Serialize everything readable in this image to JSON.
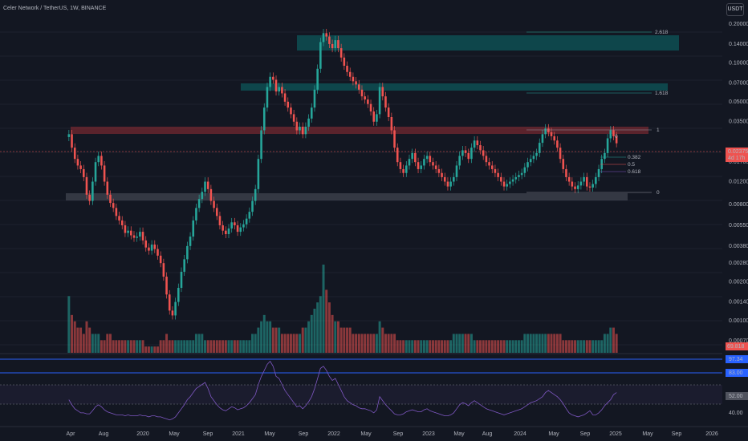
{
  "title": "Celer Network / TetherUS, 1W, BINANCE",
  "currency_button": "USDT",
  "colors": {
    "bg": "#131722",
    "up": "#26a69a",
    "down": "#ef5350",
    "rsi": "#7e57c2",
    "blue": "#2962ff"
  },
  "price_axis_labels": [
    "0.20000",
    "0.14000",
    "0.10000",
    "0.07000",
    "0.05000",
    "0.03500",
    "0.02375",
    "0.01700",
    "0.01200",
    "0.00800",
    "0.00550",
    "0.00380",
    "0.00280",
    "0.00200",
    "0.00140",
    "0.00100",
    "0.00070"
  ],
  "current_price_label": "0.02375",
  "current_price_sub": "4d 17h",
  "volume_label": "69.818",
  "rsi_labels": {
    "upper": "97.34",
    "band": "83.00",
    "value": "52.00",
    "lower": "40.00"
  },
  "time_labels": [
    "Apr",
    "Aug",
    "2020",
    "May",
    "Sep",
    "2021",
    "May",
    "Sep",
    "2022",
    "May",
    "Sep",
    "2023",
    "May",
    "Aug",
    "2024",
    "May",
    "Sep",
    "2025",
    "May",
    "Sep",
    "2026"
  ],
  "fib_labels": {
    "ext_2618": "2.618",
    "ext_1618": "1.618",
    "one": "1",
    "zero": "0",
    "r0382": "0.382",
    "r05": "0.5",
    "r0618": "0.618",
    "top0": "0"
  },
  "chart_data": {
    "type": "candlestick",
    "title": "Celer Network / TetherUS, 1W, BINANCE",
    "yscale": "log",
    "ylim": [
      0.0007,
      0.2
    ],
    "x_start": "2019-04",
    "x_end": "2026-01",
    "close_series": [
      0.028,
      0.022,
      0.018,
      0.016,
      0.015,
      0.013,
      0.0095,
      0.0085,
      0.012,
      0.017,
      0.019,
      0.016,
      0.012,
      0.0095,
      0.0082,
      0.0075,
      0.0065,
      0.006,
      0.0055,
      0.0048,
      0.005,
      0.0046,
      0.0044,
      0.0045,
      0.0049,
      0.0042,
      0.0037,
      0.0035,
      0.0039,
      0.0036,
      0.0032,
      0.0028,
      0.0022,
      0.0016,
      0.0012,
      0.0011,
      0.0014,
      0.0018,
      0.0024,
      0.003,
      0.0038,
      0.0045,
      0.006,
      0.0075,
      0.0088,
      0.01,
      0.012,
      0.0105,
      0.0085,
      0.0075,
      0.0065,
      0.0055,
      0.005,
      0.0047,
      0.0052,
      0.0058,
      0.0055,
      0.0049,
      0.0053,
      0.0056,
      0.0062,
      0.007,
      0.0085,
      0.0105,
      0.018,
      0.03,
      0.045,
      0.065,
      0.078,
      0.074,
      0.06,
      0.065,
      0.058,
      0.05,
      0.045,
      0.04,
      0.035,
      0.03,
      0.032,
      0.028,
      0.032,
      0.037,
      0.045,
      0.062,
      0.09,
      0.145,
      0.17,
      0.16,
      0.14,
      0.13,
      0.15,
      0.13,
      0.11,
      0.095,
      0.085,
      0.078,
      0.072,
      0.068,
      0.062,
      0.055,
      0.052,
      0.048,
      0.042,
      0.035,
      0.04,
      0.065,
      0.055,
      0.045,
      0.038,
      0.03,
      0.022,
      0.017,
      0.015,
      0.014,
      0.016,
      0.018,
      0.02,
      0.017,
      0.015,
      0.016,
      0.018,
      0.019,
      0.017,
      0.016,
      0.015,
      0.014,
      0.013,
      0.012,
      0.011,
      0.012,
      0.013,
      0.016,
      0.019,
      0.021,
      0.02,
      0.018,
      0.022,
      0.025,
      0.023,
      0.021,
      0.019,
      0.017,
      0.016,
      0.015,
      0.014,
      0.013,
      0.012,
      0.011,
      0.0115,
      0.012,
      0.0125,
      0.013,
      0.0135,
      0.014,
      0.0155,
      0.017,
      0.018,
      0.019,
      0.02,
      0.024,
      0.028,
      0.031,
      0.029,
      0.027,
      0.025,
      0.022,
      0.018,
      0.015,
      0.013,
      0.012,
      0.011,
      0.0105,
      0.0112,
      0.012,
      0.013,
      0.011,
      0.0108,
      0.0115,
      0.013,
      0.015,
      0.018,
      0.02,
      0.026,
      0.03,
      0.027,
      0.0238
    ],
    "volume_series": [
      9,
      6,
      5,
      4,
      4,
      3,
      5,
      4,
      3,
      3,
      3,
      2,
      2,
      3,
      3,
      2,
      2,
      2,
      2,
      2,
      2,
      2,
      2,
      2,
      2,
      2,
      1,
      1,
      1,
      1,
      1,
      2,
      2,
      3,
      2,
      2,
      2,
      2,
      2,
      2,
      2,
      2,
      2,
      3,
      3,
      3,
      2,
      2,
      2,
      2,
      2,
      2,
      2,
      2,
      2,
      2,
      2,
      2,
      2,
      2,
      2,
      2,
      3,
      3,
      4,
      5,
      6,
      5,
      5,
      4,
      4,
      4,
      3,
      3,
      3,
      3,
      3,
      3,
      3,
      4,
      4,
      5,
      6,
      7,
      8,
      9,
      14,
      10,
      8,
      6,
      5,
      5,
      4,
      4,
      4,
      4,
      3,
      3,
      3,
      3,
      3,
      3,
      3,
      3,
      3,
      5,
      4,
      3,
      3,
      3,
      3,
      2,
      2,
      2,
      2,
      2,
      2,
      2,
      2,
      2,
      2,
      2,
      2,
      2,
      2,
      2,
      2,
      2,
      2,
      2,
      3,
      3,
      3,
      3,
      3,
      3,
      3,
      2,
      2,
      2,
      2,
      2,
      2,
      2,
      2,
      2,
      2,
      2,
      2,
      2,
      2,
      2,
      2,
      2,
      3,
      3,
      3,
      3,
      3,
      3,
      3,
      3,
      3,
      3,
      3,
      3,
      3,
      2,
      2,
      2,
      2,
      2,
      2,
      2,
      2,
      2,
      2,
      2,
      2,
      2,
      2,
      3,
      3,
      4,
      4,
      3
    ],
    "rsi_series": [
      55,
      50,
      46,
      44,
      42,
      42,
      41,
      41,
      44,
      48,
      50,
      48,
      45,
      43,
      42,
      41,
      40,
      40,
      40,
      39,
      40,
      39,
      39,
      39,
      40,
      39,
      39,
      38,
      39,
      39,
      38,
      38,
      37,
      36,
      35,
      36,
      38,
      42,
      46,
      50,
      55,
      58,
      62,
      66,
      68,
      70,
      72,
      66,
      58,
      54,
      50,
      47,
      45,
      44,
      46,
      48,
      47,
      45,
      46,
      47,
      49,
      52,
      56,
      60,
      70,
      78,
      84,
      90,
      93,
      88,
      78,
      76,
      70,
      64,
      60,
      56,
      52,
      48,
      49,
      46,
      49,
      53,
      58,
      66,
      76,
      86,
      88,
      84,
      78,
      74,
      76,
      70,
      64,
      58,
      54,
      52,
      50,
      49,
      47,
      46,
      46,
      45,
      44,
      42,
      45,
      58,
      54,
      50,
      47,
      44,
      41,
      40,
      40,
      41,
      43,
      44,
      45,
      44,
      43,
      43,
      45,
      46,
      44,
      43,
      42,
      41,
      40,
      39,
      39,
      40,
      42,
      46,
      50,
      52,
      51,
      49,
      52,
      54,
      52,
      50,
      48,
      46,
      45,
      44,
      43,
      42,
      41,
      40,
      41,
      42,
      43,
      44,
      45,
      46,
      48,
      50,
      52,
      53,
      54,
      56,
      58,
      62,
      64,
      62,
      60,
      58,
      55,
      51,
      46,
      42,
      40,
      39,
      38,
      39,
      40,
      42,
      44,
      40,
      40,
      42,
      45,
      49,
      52,
      55,
      60,
      62,
      58,
      52
    ]
  }
}
